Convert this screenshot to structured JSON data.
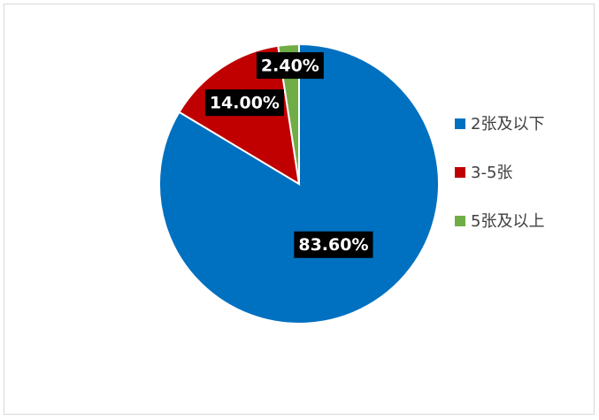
{
  "chart_data": {
    "type": "pie",
    "categories": [
      "2张及以下",
      "3-5张",
      "5张及以上"
    ],
    "values": [
      83.6,
      14.0,
      2.4
    ],
    "value_labels": [
      "83.60%",
      "14.00%",
      "2.40%"
    ],
    "colors": [
      "#0070c0",
      "#c00000",
      "#70ad47"
    ],
    "legend": "right"
  }
}
